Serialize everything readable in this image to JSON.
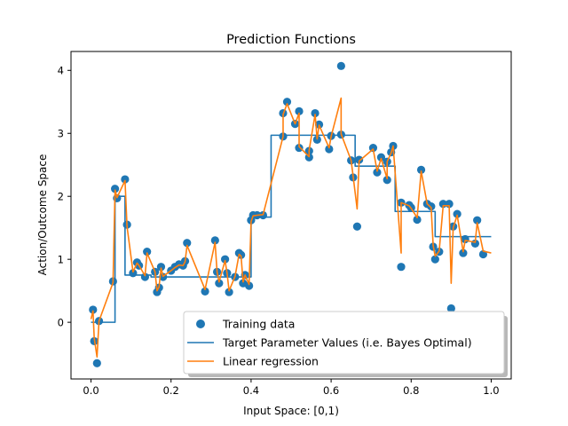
{
  "chart_data": {
    "type": "scatter",
    "title": "Prediction Functions",
    "xlabel": "Input Space: [0,1)",
    "ylabel": "Action/Outcome Space",
    "xlim": [
      -0.05,
      1.05
    ],
    "ylim": [
      -0.9,
      4.3
    ],
    "xticks": [
      0.0,
      0.2,
      0.4,
      0.6,
      0.8,
      1.0
    ],
    "xtick_labels": [
      "0.0",
      "0.2",
      "0.4",
      "0.6",
      "0.8",
      "1.0"
    ],
    "yticks": [
      0,
      1,
      2,
      3,
      4
    ],
    "ytick_labels": [
      "0",
      "1",
      "2",
      "3",
      "4"
    ],
    "grid": false,
    "legend_position": "lower-right",
    "series": [
      {
        "name": "Training data",
        "kind": "scatter",
        "color": "#1f77b4",
        "points": [
          [
            0.005,
            0.2
          ],
          [
            0.008,
            -0.3
          ],
          [
            0.015,
            -0.65
          ],
          [
            0.02,
            0.02
          ],
          [
            0.055,
            0.65
          ],
          [
            0.06,
            2.12
          ],
          [
            0.065,
            1.97
          ],
          [
            0.085,
            2.27
          ],
          [
            0.09,
            1.55
          ],
          [
            0.105,
            0.78
          ],
          [
            0.115,
            0.95
          ],
          [
            0.12,
            0.9
          ],
          [
            0.135,
            0.72
          ],
          [
            0.14,
            1.12
          ],
          [
            0.16,
            0.8
          ],
          [
            0.165,
            0.48
          ],
          [
            0.17,
            0.55
          ],
          [
            0.175,
            0.88
          ],
          [
            0.18,
            0.72
          ],
          [
            0.2,
            0.82
          ],
          [
            0.21,
            0.88
          ],
          [
            0.22,
            0.92
          ],
          [
            0.23,
            0.9
          ],
          [
            0.235,
            0.97
          ],
          [
            0.24,
            1.26
          ],
          [
            0.285,
            0.49
          ],
          [
            0.31,
            1.3
          ],
          [
            0.315,
            0.8
          ],
          [
            0.32,
            0.62
          ],
          [
            0.335,
            1.0
          ],
          [
            0.34,
            0.78
          ],
          [
            0.345,
            0.48
          ],
          [
            0.36,
            0.72
          ],
          [
            0.37,
            1.1
          ],
          [
            0.375,
            1.07
          ],
          [
            0.38,
            0.62
          ],
          [
            0.385,
            0.75
          ],
          [
            0.395,
            0.58
          ],
          [
            0.4,
            1.62
          ],
          [
            0.405,
            1.7
          ],
          [
            0.415,
            1.7
          ],
          [
            0.43,
            1.7
          ],
          [
            0.48,
            2.95
          ],
          [
            0.48,
            3.32
          ],
          [
            0.49,
            3.5
          ],
          [
            0.51,
            3.15
          ],
          [
            0.52,
            3.35
          ],
          [
            0.52,
            2.77
          ],
          [
            0.545,
            2.62
          ],
          [
            0.545,
            2.72
          ],
          [
            0.56,
            3.32
          ],
          [
            0.565,
            2.9
          ],
          [
            0.57,
            3.14
          ],
          [
            0.595,
            2.75
          ],
          [
            0.6,
            2.96
          ],
          [
            0.625,
            4.07
          ],
          [
            0.625,
            2.98
          ],
          [
            0.65,
            2.57
          ],
          [
            0.655,
            2.3
          ],
          [
            0.665,
            1.52
          ],
          [
            0.67,
            2.58
          ],
          [
            0.705,
            2.77
          ],
          [
            0.715,
            2.38
          ],
          [
            0.725,
            2.62
          ],
          [
            0.74,
            2.26
          ],
          [
            0.74,
            2.55
          ],
          [
            0.75,
            2.7
          ],
          [
            0.755,
            2.8
          ],
          [
            0.775,
            0.88
          ],
          [
            0.775,
            1.9
          ],
          [
            0.795,
            1.86
          ],
          [
            0.8,
            1.82
          ],
          [
            0.815,
            1.63
          ],
          [
            0.825,
            2.42
          ],
          [
            0.84,
            1.88
          ],
          [
            0.85,
            1.84
          ],
          [
            0.855,
            1.2
          ],
          [
            0.86,
            1.0
          ],
          [
            0.87,
            1.12
          ],
          [
            0.88,
            1.88
          ],
          [
            0.895,
            1.88
          ],
          [
            0.9,
            0.22
          ],
          [
            0.905,
            1.52
          ],
          [
            0.915,
            1.72
          ],
          [
            0.93,
            1.1
          ],
          [
            0.935,
            1.32
          ],
          [
            0.96,
            1.25
          ],
          [
            0.965,
            1.62
          ],
          [
            0.98,
            1.08
          ]
        ]
      },
      {
        "name": "Target Parameter Values (i.e. Bayes Optimal)",
        "kind": "step",
        "color": "#1f77b4",
        "points": [
          [
            0.0,
            0.0
          ],
          [
            0.06,
            0.0
          ],
          [
            0.06,
            2.0
          ],
          [
            0.085,
            2.0
          ],
          [
            0.085,
            0.75
          ],
          [
            0.15,
            0.75
          ],
          [
            0.15,
            0.72
          ],
          [
            0.4,
            0.72
          ],
          [
            0.4,
            1.67
          ],
          [
            0.45,
            1.67
          ],
          [
            0.45,
            2.97
          ],
          [
            0.66,
            2.97
          ],
          [
            0.66,
            2.48
          ],
          [
            0.76,
            2.48
          ],
          [
            0.76,
            1.76
          ],
          [
            0.86,
            1.76
          ],
          [
            0.86,
            1.36
          ],
          [
            1.0,
            1.36
          ]
        ]
      },
      {
        "name": "Linear regression",
        "kind": "line",
        "color": "#ff7f0e",
        "points": [
          [
            0.0,
            0.05
          ],
          [
            0.005,
            0.18
          ],
          [
            0.008,
            -0.25
          ],
          [
            0.015,
            -0.55
          ],
          [
            0.02,
            0.02
          ],
          [
            0.055,
            0.63
          ],
          [
            0.06,
            2.1
          ],
          [
            0.065,
            1.98
          ],
          [
            0.085,
            2.25
          ],
          [
            0.09,
            1.52
          ],
          [
            0.105,
            0.8
          ],
          [
            0.115,
            0.94
          ],
          [
            0.12,
            0.9
          ],
          [
            0.135,
            0.74
          ],
          [
            0.14,
            1.1
          ],
          [
            0.16,
            0.8
          ],
          [
            0.165,
            0.5
          ],
          [
            0.17,
            0.56
          ],
          [
            0.175,
            0.86
          ],
          [
            0.18,
            0.73
          ],
          [
            0.2,
            0.82
          ],
          [
            0.21,
            0.87
          ],
          [
            0.22,
            0.91
          ],
          [
            0.23,
            0.9
          ],
          [
            0.235,
            0.96
          ],
          [
            0.24,
            1.22
          ],
          [
            0.285,
            0.52
          ],
          [
            0.31,
            1.27
          ],
          [
            0.315,
            0.8
          ],
          [
            0.32,
            0.64
          ],
          [
            0.335,
            0.98
          ],
          [
            0.34,
            0.78
          ],
          [
            0.345,
            0.5
          ],
          [
            0.36,
            0.73
          ],
          [
            0.37,
            1.08
          ],
          [
            0.375,
            1.05
          ],
          [
            0.38,
            0.64
          ],
          [
            0.385,
            0.75
          ],
          [
            0.395,
            0.6
          ],
          [
            0.4,
            1.6
          ],
          [
            0.405,
            1.69
          ],
          [
            0.415,
            1.7
          ],
          [
            0.43,
            1.71
          ],
          [
            0.48,
            2.95
          ],
          [
            0.48,
            3.3
          ],
          [
            0.49,
            3.47
          ],
          [
            0.51,
            3.15
          ],
          [
            0.52,
            3.32
          ],
          [
            0.52,
            2.79
          ],
          [
            0.545,
            2.63
          ],
          [
            0.545,
            2.73
          ],
          [
            0.56,
            3.3
          ],
          [
            0.565,
            2.91
          ],
          [
            0.57,
            3.13
          ],
          [
            0.595,
            2.77
          ],
          [
            0.6,
            2.95
          ],
          [
            0.625,
            3.56
          ],
          [
            0.625,
            2.99
          ],
          [
            0.65,
            2.57
          ],
          [
            0.655,
            2.32
          ],
          [
            0.665,
            1.8
          ],
          [
            0.67,
            2.56
          ],
          [
            0.705,
            2.75
          ],
          [
            0.715,
            2.4
          ],
          [
            0.725,
            2.6
          ],
          [
            0.74,
            2.28
          ],
          [
            0.74,
            2.55
          ],
          [
            0.75,
            2.69
          ],
          [
            0.755,
            2.8
          ],
          [
            0.775,
            1.1
          ],
          [
            0.775,
            1.9
          ],
          [
            0.795,
            1.85
          ],
          [
            0.8,
            1.81
          ],
          [
            0.815,
            1.66
          ],
          [
            0.825,
            2.4
          ],
          [
            0.84,
            1.88
          ],
          [
            0.85,
            1.82
          ],
          [
            0.855,
            1.22
          ],
          [
            0.86,
            1.05
          ],
          [
            0.87,
            1.13
          ],
          [
            0.88,
            1.85
          ],
          [
            0.895,
            1.85
          ],
          [
            0.9,
            0.62
          ],
          [
            0.905,
            1.5
          ],
          [
            0.915,
            1.7
          ],
          [
            0.93,
            1.12
          ],
          [
            0.935,
            1.3
          ],
          [
            0.96,
            1.27
          ],
          [
            0.965,
            1.58
          ],
          [
            0.98,
            1.13
          ],
          [
            1.0,
            1.1
          ]
        ]
      }
    ]
  }
}
